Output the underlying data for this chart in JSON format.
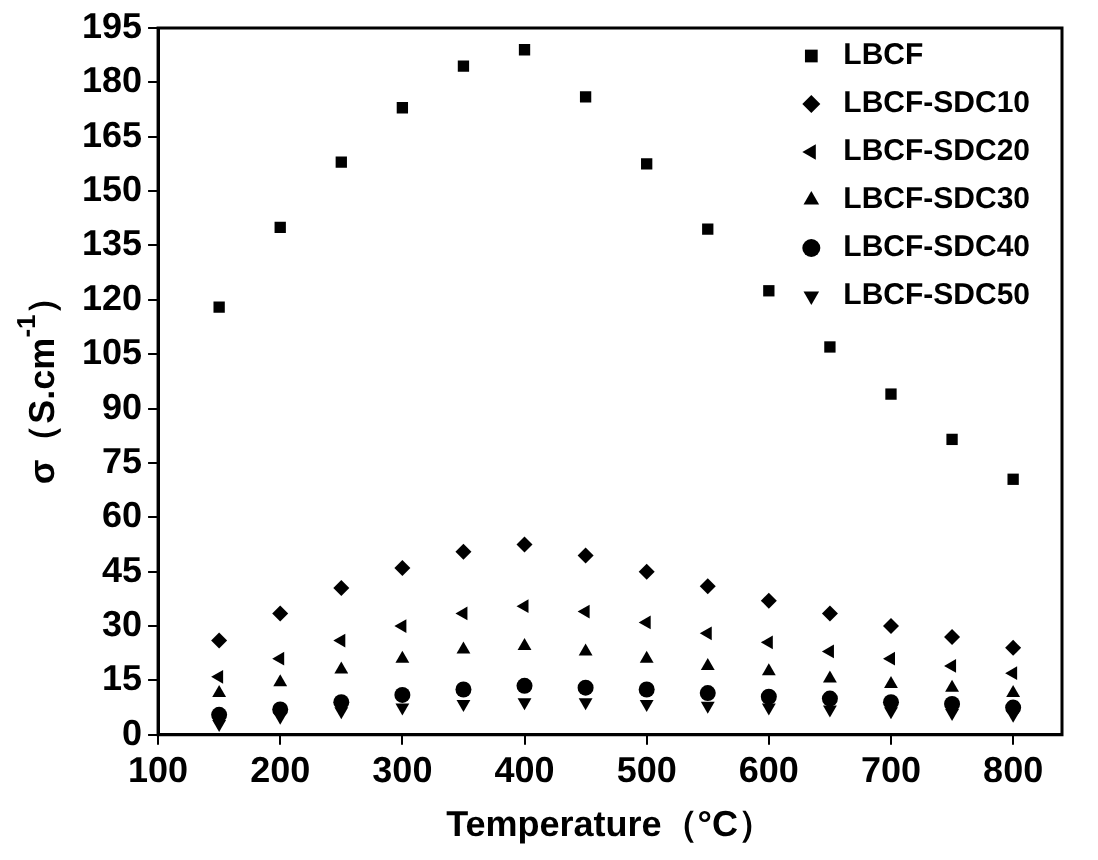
{
  "chart_data": {
    "type": "scatter",
    "xlabel": "Temperature（°C）",
    "ylabel": "σ（S.cm$^{-1}$）",
    "x": [
      150,
      200,
      250,
      300,
      350,
      400,
      450,
      500,
      550,
      600,
      650,
      700,
      750,
      800
    ],
    "xlim": [
      100,
      840
    ],
    "xticks": [
      100,
      200,
      300,
      400,
      500,
      600,
      700,
      800
    ],
    "ylim": [
      0,
      195
    ],
    "yticks": [
      0,
      15,
      30,
      45,
      60,
      75,
      90,
      105,
      120,
      135,
      150,
      165,
      180,
      195
    ],
    "grid": false,
    "legend": "top right",
    "series": [
      {
        "name": "LBCF",
        "color": "#000000",
        "marker": "square",
        "values": [
          118,
          140,
          158,
          173,
          184.5,
          189,
          176,
          157.5,
          139.5,
          122.5,
          107,
          94,
          81.5,
          70.5
        ]
      },
      {
        "name": "LBCF-SDC10",
        "color": "#000000",
        "marker": "diamond",
        "values": [
          26,
          33.5,
          40.5,
          46,
          50.5,
          52.5,
          49.5,
          45,
          41,
          37,
          33.5,
          30,
          27,
          24
        ]
      },
      {
        "name": "LBCF-SDC20",
        "color": "#000000",
        "marker": "triangle-left",
        "values": [
          16,
          21,
          26,
          30,
          33.5,
          35.5,
          34,
          31,
          28,
          25.5,
          23,
          21,
          19,
          17
        ]
      },
      {
        "name": "LBCF-SDC30",
        "color": "#000000",
        "marker": "triangle",
        "values": [
          11.5,
          14.5,
          18,
          21,
          23.5,
          24.5,
          23,
          21,
          19,
          17.5,
          15.5,
          14,
          13,
          11.5
        ]
      },
      {
        "name": "LBCF-SDC40",
        "color": "#000000",
        "marker": "circle",
        "values": [
          5.5,
          7,
          9,
          11,
          12.5,
          13.5,
          13,
          12.5,
          11.5,
          10.5,
          10,
          9,
          8.5,
          7.5
        ]
      },
      {
        "name": "LBCF-SDC50",
        "color": "#000000",
        "marker": "triangle-down",
        "values": [
          3,
          5,
          6.5,
          7.5,
          8.5,
          9,
          9,
          8.5,
          8,
          7.5,
          7,
          6.5,
          6,
          5.5
        ]
      }
    ]
  }
}
